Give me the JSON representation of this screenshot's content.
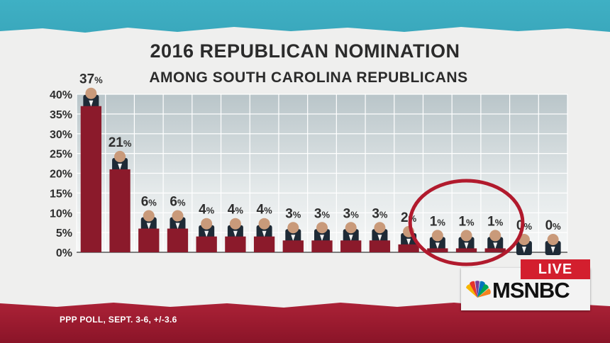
{
  "header": {
    "title": "2016 REPUBLICAN NOMINATION",
    "subtitle": "AMONG SOUTH CAROLINA REPUBLICANS"
  },
  "footnote": "PPP POLL, SEPT. 3-6, +/-3.6",
  "logo": {
    "live": "LIVE",
    "network": "MSNBC"
  },
  "colors": {
    "bar": "#8b1a2b",
    "circle": "#b11a2d",
    "live": "#d31f2e"
  },
  "chart_data": {
    "type": "bar",
    "categories": [
      "",
      "",
      "",
      "",
      "",
      "",
      "",
      "",
      "",
      "",
      "",
      "",
      "",
      "",
      "",
      "",
      ""
    ],
    "values": [
      37,
      21,
      6,
      6,
      4,
      4,
      4,
      3,
      3,
      3,
      3,
      2,
      1,
      1,
      1,
      0,
      0
    ],
    "data_labels": [
      "37%",
      "21%",
      "6%",
      "6%",
      "4%",
      "4%",
      "4%",
      "3%",
      "3%",
      "3%",
      "3%",
      "2%",
      "1%",
      "1%",
      "1%",
      "0%",
      "0%"
    ],
    "y_ticks": [
      "0%",
      "5%",
      "10%",
      "15%",
      "20%",
      "25%",
      "30%",
      "35%",
      "40%"
    ],
    "ylim": [
      0,
      40
    ],
    "grid": true,
    "highlighted_categories": [
      12,
      13,
      14
    ]
  }
}
